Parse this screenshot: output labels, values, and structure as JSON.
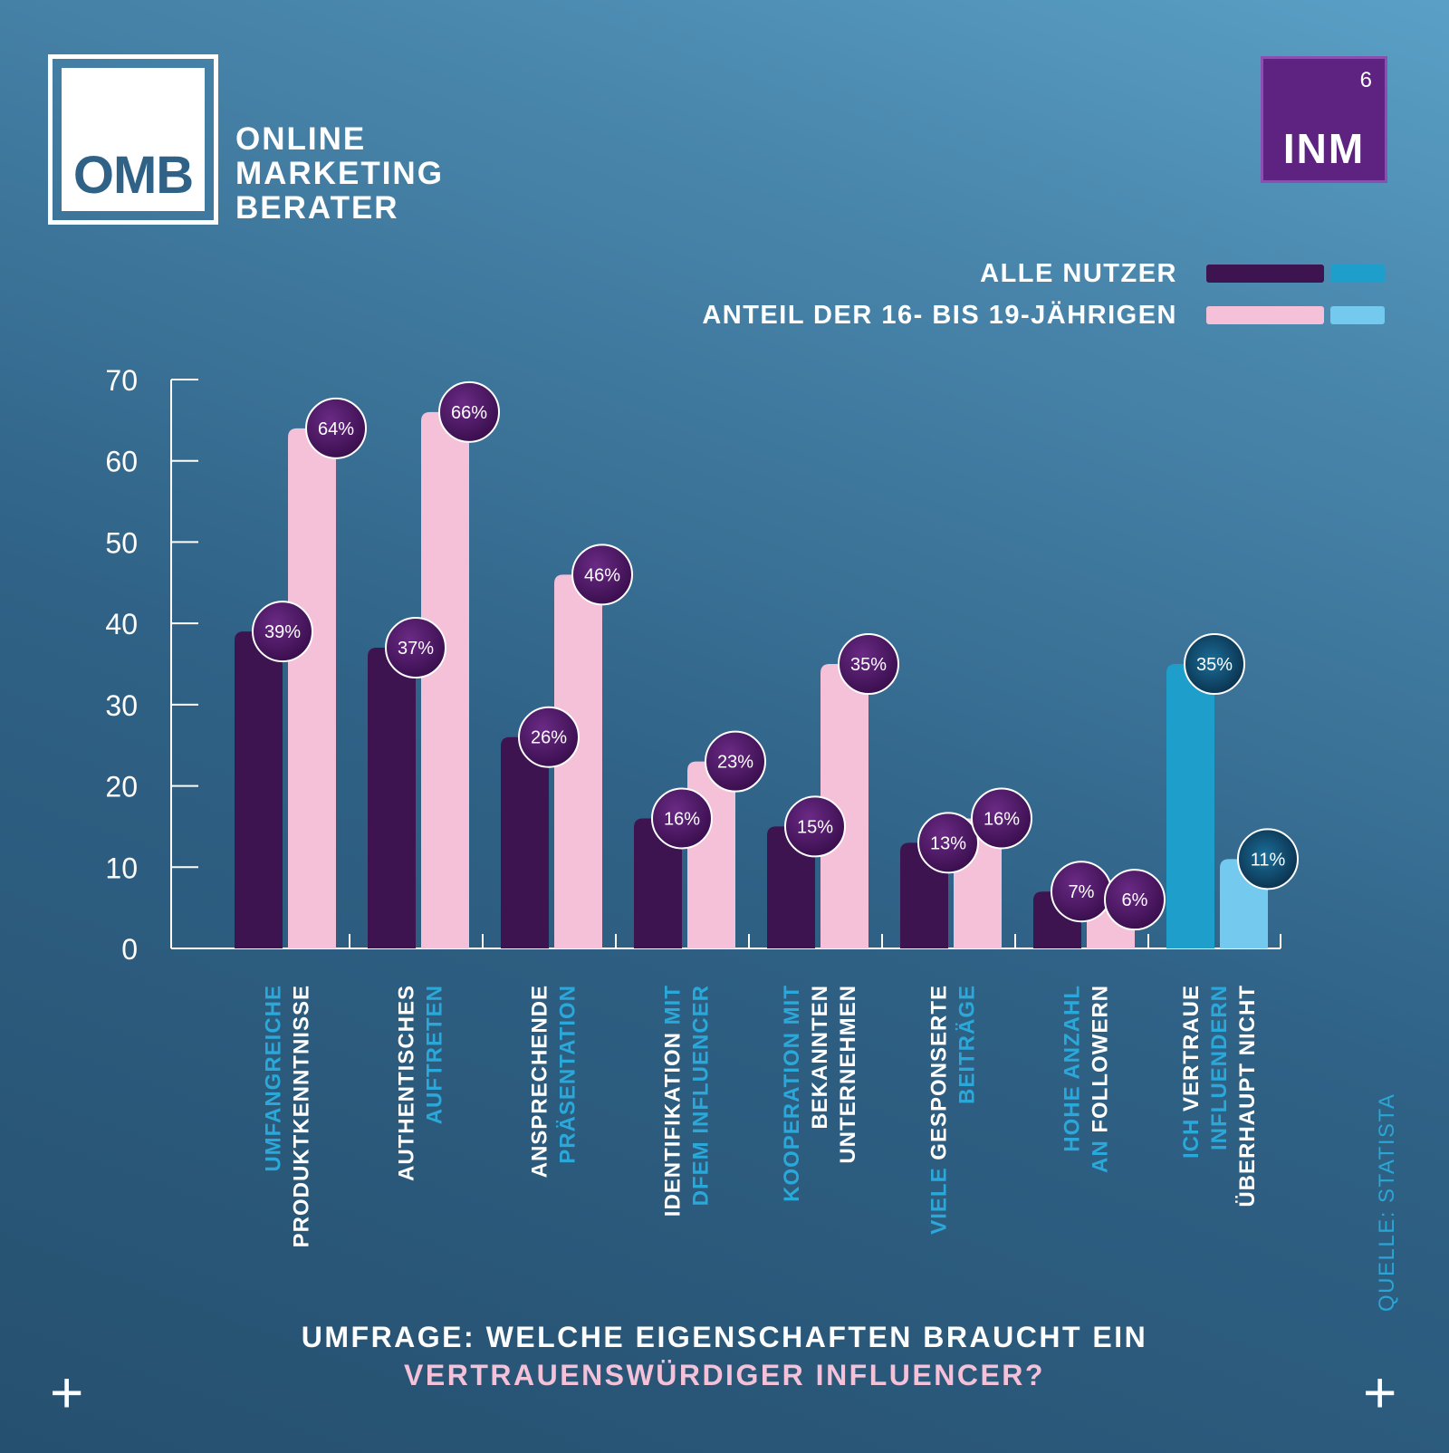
{
  "brand": {
    "logo_text": "OMB",
    "lines": [
      "ONLINE",
      "MARKETING",
      "BERATER"
    ]
  },
  "badge": {
    "number": "6",
    "text": "INM"
  },
  "legend": {
    "all_users": "ALLE NUTZER",
    "teen_share": "ANTEIL DER 16- BIS 19-JÄHRIGEN"
  },
  "colors": {
    "all_users": "#3d1350",
    "teen_share": "#f4c1d8",
    "all_users_alt": "#1e9fcb",
    "teen_share_alt": "#74c9ef",
    "bubble": "#4a1460",
    "bubble_alt": "#0c3f60",
    "label_blue": "#2aa8da",
    "label_white": "#ffffff"
  },
  "chart_data": {
    "type": "bar",
    "title": "UMFRAGE: WELCHE EIGENSCHAFTEN BRAUCHT EIN VERTRAUENSWÜRDIGER INFLUENCER?",
    "ylim": [
      0,
      70
    ],
    "yticks": [
      0,
      10,
      20,
      30,
      40,
      50,
      60,
      70
    ],
    "grid": false,
    "legend_position": "top-right",
    "series": [
      {
        "name": "ALLE NUTZER",
        "values": [
          39,
          37,
          26,
          16,
          15,
          13,
          7,
          35
        ],
        "labels": [
          "39%",
          "37%",
          "26%",
          "16%",
          "15%",
          "13%",
          "7%",
          "35%"
        ]
      },
      {
        "name": "ANTEIL DER 16- BIS 19-JÄHRIGEN",
        "values": [
          64,
          66,
          46,
          23,
          35,
          16,
          6,
          11
        ],
        "labels": [
          "64%",
          "66%",
          "46%",
          "23%",
          "35%",
          "16%",
          "6%",
          "11%"
        ]
      }
    ],
    "categories": [
      {
        "lines": [
          {
            "segments": [
              {
                "text": "UMFANGREICHE",
                "tone": "blue"
              }
            ]
          },
          {
            "segments": [
              {
                "text": "PRODUKTKENNTNISSE",
                "tone": "white"
              }
            ]
          }
        ]
      },
      {
        "lines": [
          {
            "segments": [
              {
                "text": "AUTHENTISCHES",
                "tone": "white"
              }
            ]
          },
          {
            "segments": [
              {
                "text": "AUFTRETEN",
                "tone": "blue"
              }
            ]
          }
        ]
      },
      {
        "lines": [
          {
            "segments": [
              {
                "text": "ANSPRECHENDE",
                "tone": "white"
              }
            ]
          },
          {
            "segments": [
              {
                "text": "PRÄSENTATION",
                "tone": "blue"
              }
            ]
          }
        ]
      },
      {
        "lines": [
          {
            "segments": [
              {
                "text": "IDENTIFIKATION ",
                "tone": "white"
              },
              {
                "text": "MIT",
                "tone": "blue"
              }
            ]
          },
          {
            "segments": [
              {
                "text": "DFEM INFLUENCER",
                "tone": "blue"
              }
            ]
          }
        ]
      },
      {
        "lines": [
          {
            "segments": [
              {
                "text": "KOOPERATION MIT",
                "tone": "blue"
              }
            ]
          },
          {
            "segments": [
              {
                "text": "BEKANNTEN",
                "tone": "white"
              }
            ]
          },
          {
            "segments": [
              {
                "text": "UNTERNEHMEN",
                "tone": "white"
              }
            ]
          }
        ]
      },
      {
        "lines": [
          {
            "segments": [
              {
                "text": "VIELE ",
                "tone": "blue"
              },
              {
                "text": "GESPONSERTE",
                "tone": "white"
              }
            ]
          },
          {
            "segments": [
              {
                "text": "BEITRÄGE",
                "tone": "blue"
              }
            ]
          }
        ]
      },
      {
        "lines": [
          {
            "segments": [
              {
                "text": "HOHE ANZAHL",
                "tone": "blue"
              }
            ]
          },
          {
            "segments": [
              {
                "text": "AN ",
                "tone": "blue"
              },
              {
                "text": "FOLLOWERN",
                "tone": "white"
              }
            ]
          }
        ]
      },
      {
        "lines": [
          {
            "segments": [
              {
                "text": "ICH ",
                "tone": "blue"
              },
              {
                "text": "VERTRAUE",
                "tone": "white"
              }
            ]
          },
          {
            "segments": [
              {
                "text": "INFLUENDERN",
                "tone": "blue"
              }
            ]
          },
          {
            "segments": [
              {
                "text": "ÜBERHAUPT NICHT",
                "tone": "white"
              }
            ]
          }
        ]
      }
    ]
  },
  "question": {
    "line1": "UMFRAGE: WELCHE EIGENSCHAFTEN BRAUCHT EIN",
    "line2": "VERTRAUENSWÜRDIGER INFLUENCER?"
  },
  "source": "QUELLE: STATISTA",
  "corner_mark": "+"
}
